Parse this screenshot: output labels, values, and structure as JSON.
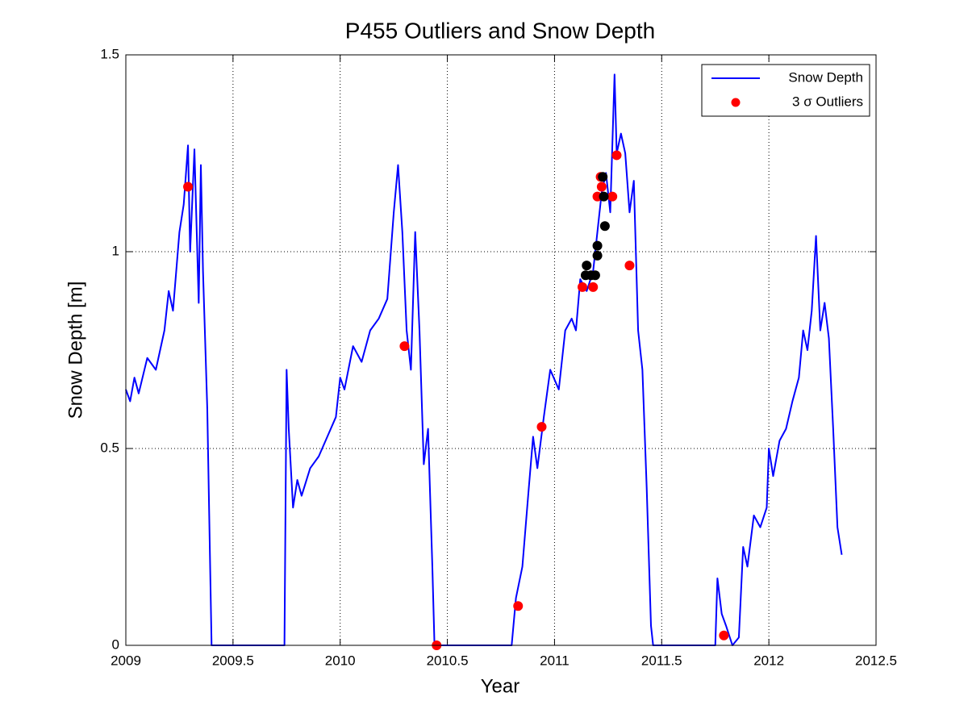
{
  "chart_data": {
    "type": "line",
    "title": "P455 Outliers and Snow Depth",
    "x_label": "Year",
    "y_label": "Snow Depth [m]",
    "xlim": [
      2009,
      2012.5
    ],
    "xticks": [
      2009,
      2009.5,
      2010,
      2010.5,
      2011,
      2011.5,
      2012,
      2012.5
    ],
    "ylim": [
      0,
      1.5
    ],
    "yticks": [
      0,
      0.5,
      1,
      1.5
    ],
    "grid": true,
    "legend": "upper right",
    "series": [
      {
        "name": "Snow Depth",
        "type": "line",
        "color": "#0000ff",
        "x": [
          2009,
          2009.02,
          2009.04,
          2009.06,
          2009.1,
          2009.14,
          2009.18,
          2009.2,
          2009.22,
          2009.25,
          2009.27,
          2009.29,
          2009.3,
          2009.32,
          2009.34,
          2009.35,
          2009.36,
          2009.38,
          2009.395,
          2009.4,
          2009.74,
          2009.75,
          2009.76,
          2009.78,
          2009.8,
          2009.82,
          2009.86,
          2009.9,
          2009.94,
          2009.98,
          2010,
          2010.02,
          2010.06,
          2010.1,
          2010.14,
          2010.18,
          2010.22,
          2010.25,
          2010.27,
          2010.29,
          2010.31,
          2010.33,
          2010.35,
          2010.37,
          2010.39,
          2010.41,
          2010.43,
          2010.44,
          2010.8,
          2010.82,
          2010.85,
          2010.88,
          2010.9,
          2010.92,
          2010.95,
          2010.98,
          2011.02,
          2011.05,
          2011.08,
          2011.1,
          2011.12,
          2011.15,
          2011.18,
          2011.2,
          2011.22,
          2011.24,
          2011.26,
          2011.28,
          2011.29,
          2011.31,
          2011.33,
          2011.35,
          2011.37,
          2011.39,
          2011.41,
          2011.43,
          2011.45,
          2011.46,
          2011.75,
          2011.76,
          2011.78,
          2011.8,
          2011.83,
          2011.86,
          2011.88,
          2011.9,
          2011.93,
          2011.96,
          2011.99,
          2012,
          2012.02,
          2012.05,
          2012.08,
          2012.11,
          2012.14,
          2012.16,
          2012.18,
          2012.2,
          2012.22,
          2012.24,
          2012.26,
          2012.28,
          2012.3,
          2012.32,
          2012.34
        ],
        "values": [
          0.65,
          0.62,
          0.68,
          0.64,
          0.73,
          0.7,
          0.8,
          0.9,
          0.85,
          1.05,
          1.12,
          1.27,
          1.0,
          1.26,
          0.87,
          1.22,
          0.95,
          0.6,
          0.15,
          0,
          0,
          0.7,
          0.55,
          0.35,
          0.42,
          0.38,
          0.45,
          0.48,
          0.53,
          0.58,
          0.68,
          0.65,
          0.76,
          0.72,
          0.8,
          0.83,
          0.88,
          1.1,
          1.22,
          1.05,
          0.8,
          0.7,
          1.05,
          0.8,
          0.46,
          0.55,
          0.2,
          0,
          0,
          0.12,
          0.2,
          0.4,
          0.53,
          0.45,
          0.58,
          0.7,
          0.65,
          0.8,
          0.83,
          0.8,
          0.93,
          0.9,
          0.95,
          1.05,
          1.15,
          1.2,
          1.1,
          1.45,
          1.25,
          1.3,
          1.25,
          1.1,
          1.18,
          0.8,
          0.7,
          0.4,
          0.05,
          0,
          0,
          0.17,
          0.08,
          0.05,
          0,
          0.02,
          0.25,
          0.2,
          0.33,
          0.3,
          0.35,
          0.5,
          0.43,
          0.52,
          0.55,
          0.62,
          0.68,
          0.8,
          0.75,
          0.85,
          1.04,
          0.8,
          0.87,
          0.78,
          0.55,
          0.3,
          0.23
        ]
      },
      {
        "name": "3 σ Outliers",
        "type": "scatter",
        "color": "#ff0000",
        "x": [
          2009.29,
          2010.3,
          2010.45,
          2010.83,
          2010.94,
          2011.13,
          2011.18,
          2011.2,
          2011.215,
          2011.22,
          2011.27,
          2011.29,
          2011.35,
          2011.79
        ],
        "values": [
          1.165,
          0.76,
          0,
          0.1,
          0.555,
          0.91,
          0.91,
          1.14,
          1.19,
          1.165,
          1.14,
          1.245,
          0.965,
          0.025
        ]
      },
      {
        "type": "scatter",
        "color": "#000000",
        "x": [
          2011.15,
          2011.145,
          2011.17,
          2011.19,
          2011.2,
          2011.2,
          2011.225,
          2011.23,
          2011.235
        ],
        "values": [
          0.965,
          0.94,
          0.94,
          0.94,
          0.99,
          1.015,
          1.19,
          1.14,
          1.065
        ]
      }
    ]
  }
}
